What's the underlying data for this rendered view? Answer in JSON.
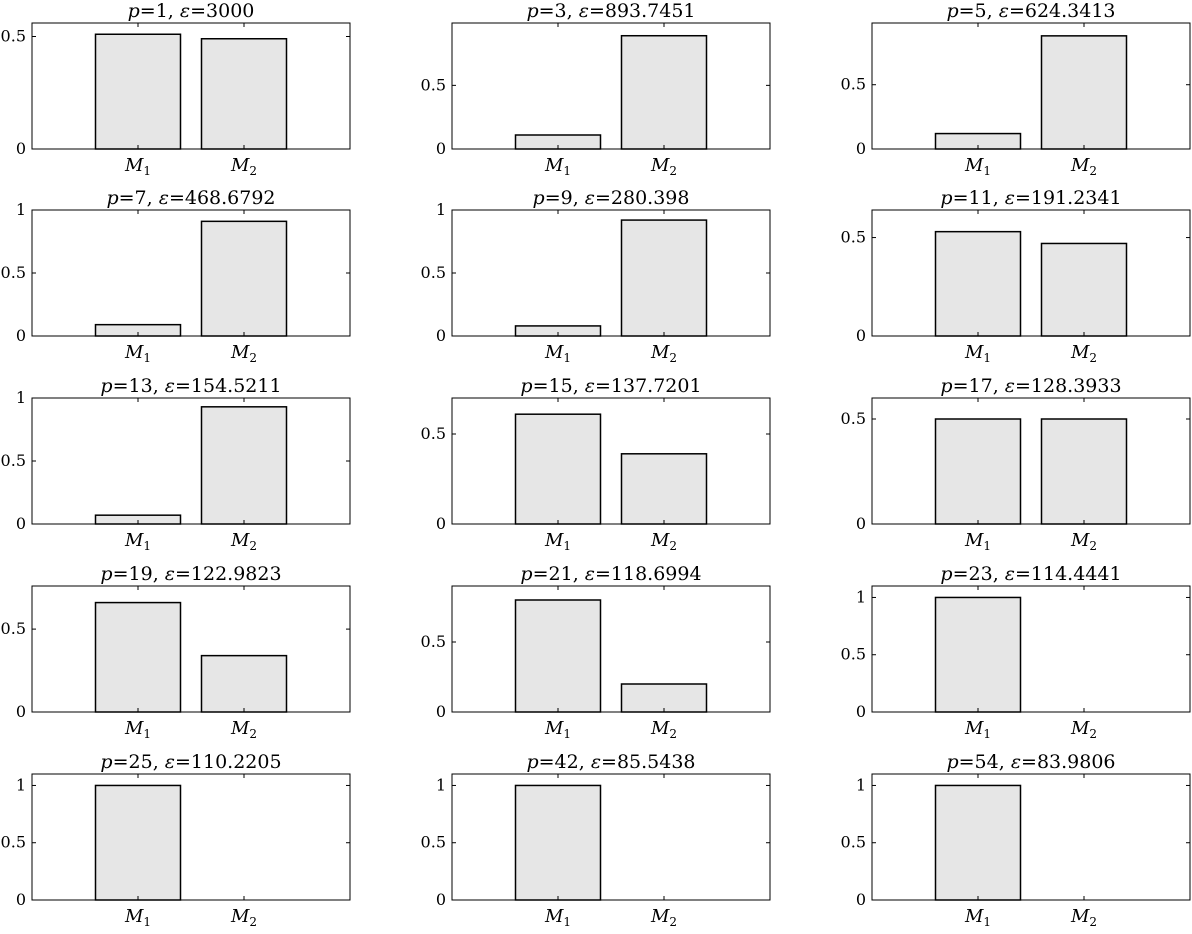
{
  "chart_data": [
    {
      "type": "bar",
      "title": "p=1, ε=3000",
      "title_parts": {
        "p": "1",
        "e": "3000"
      },
      "categories": [
        "M1",
        "M2"
      ],
      "values": [
        0.51,
        0.49
      ],
      "ylim": [
        0,
        0.56
      ],
      "yticks": [
        0,
        0.5
      ],
      "ytick_labels": [
        "0",
        "0.5"
      ],
      "grid": false
    },
    {
      "type": "bar",
      "title": "p=3, ε=893.7451",
      "title_parts": {
        "p": "3",
        "e": "893.7451"
      },
      "categories": [
        "M1",
        "M2"
      ],
      "values": [
        0.11,
        0.89
      ],
      "ylim": [
        0,
        0.99
      ],
      "yticks": [
        0,
        0.5
      ],
      "ytick_labels": [
        "0",
        "0.5"
      ],
      "grid": false
    },
    {
      "type": "bar",
      "title": "p=5, ε=624.3413",
      "title_parts": {
        "p": "5",
        "e": "624.3413"
      },
      "categories": [
        "M1",
        "M2"
      ],
      "values": [
        0.12,
        0.88
      ],
      "ylim": [
        0,
        0.98
      ],
      "yticks": [
        0,
        0.5
      ],
      "ytick_labels": [
        "0",
        "0.5"
      ],
      "grid": false
    },
    {
      "type": "bar",
      "title": "p=7, ε=468.6792",
      "title_parts": {
        "p": "7",
        "e": "468.6792"
      },
      "categories": [
        "M1",
        "M2"
      ],
      "values": [
        0.09,
        0.91
      ],
      "ylim": [
        0,
        1.0
      ],
      "yticks": [
        0,
        0.5,
        1
      ],
      "ytick_labels": [
        "0",
        "0.5",
        "1"
      ],
      "grid": false
    },
    {
      "type": "bar",
      "title": "p=9, ε=280.398",
      "title_parts": {
        "p": "9",
        "e": "280.398"
      },
      "categories": [
        "M1",
        "M2"
      ],
      "values": [
        0.08,
        0.92
      ],
      "ylim": [
        0,
        1.0
      ],
      "yticks": [
        0,
        0.5,
        1
      ],
      "ytick_labels": [
        "0",
        "0.5",
        "1"
      ],
      "grid": false
    },
    {
      "type": "bar",
      "title": "p=11, ε=191.2341",
      "title_parts": {
        "p": "11",
        "e": "191.2341"
      },
      "categories": [
        "M1",
        "M2"
      ],
      "values": [
        0.53,
        0.47
      ],
      "ylim": [
        0,
        0.64
      ],
      "yticks": [
        0,
        0.5
      ],
      "ytick_labels": [
        "0",
        "0.5"
      ],
      "grid": false
    },
    {
      "type": "bar",
      "title": "p=13, ε=154.5211",
      "title_parts": {
        "p": "13",
        "e": "154.5211"
      },
      "categories": [
        "M1",
        "M2"
      ],
      "values": [
        0.07,
        0.93
      ],
      "ylim": [
        0,
        1.0
      ],
      "yticks": [
        0,
        0.5,
        1
      ],
      "ytick_labels": [
        "0",
        "0.5",
        "1"
      ],
      "grid": false
    },
    {
      "type": "bar",
      "title": "p=15, ε=137.7201",
      "title_parts": {
        "p": "15",
        "e": "137.7201"
      },
      "categories": [
        "M1",
        "M2"
      ],
      "values": [
        0.61,
        0.39
      ],
      "ylim": [
        0,
        0.7
      ],
      "yticks": [
        0,
        0.5
      ],
      "ytick_labels": [
        "0",
        "0.5"
      ],
      "grid": false
    },
    {
      "type": "bar",
      "title": "p=17, ε=128.3933",
      "title_parts": {
        "p": "17",
        "e": "128.3933"
      },
      "categories": [
        "M1",
        "M2"
      ],
      "values": [
        0.5,
        0.5
      ],
      "ylim": [
        0,
        0.6
      ],
      "yticks": [
        0,
        0.5
      ],
      "ytick_labels": [
        "0",
        "0.5"
      ],
      "grid": false
    },
    {
      "type": "bar",
      "title": "p=19, ε=122.9823",
      "title_parts": {
        "p": "19",
        "e": "122.9823"
      },
      "categories": [
        "M1",
        "M2"
      ],
      "values": [
        0.66,
        0.34
      ],
      "ylim": [
        0,
        0.76
      ],
      "yticks": [
        0,
        0.5
      ],
      "ytick_labels": [
        "0",
        "0.5"
      ],
      "grid": false
    },
    {
      "type": "bar",
      "title": "p=21, ε=118.6994",
      "title_parts": {
        "p": "21",
        "e": "118.6994"
      },
      "categories": [
        "M1",
        "M2"
      ],
      "values": [
        0.8,
        0.2
      ],
      "ylim": [
        0,
        0.9
      ],
      "yticks": [
        0,
        0.5
      ],
      "ytick_labels": [
        "0",
        "0.5"
      ],
      "grid": false
    },
    {
      "type": "bar",
      "title": "p=23, ε=114.4441",
      "title_parts": {
        "p": "23",
        "e": "114.4441"
      },
      "categories": [
        "M1",
        "M2"
      ],
      "values": [
        1.0,
        0.0
      ],
      "ylim": [
        0,
        1.1
      ],
      "yticks": [
        0,
        0.5,
        1
      ],
      "ytick_labels": [
        "0",
        "0.5",
        "1"
      ],
      "grid": false
    },
    {
      "type": "bar",
      "title": "p=25, ε=110.2205",
      "title_parts": {
        "p": "25",
        "e": "110.2205"
      },
      "categories": [
        "M1",
        "M2"
      ],
      "values": [
        1.0,
        0.0
      ],
      "ylim": [
        0,
        1.1
      ],
      "yticks": [
        0,
        0.5,
        1
      ],
      "ytick_labels": [
        "0",
        "0.5",
        "1"
      ],
      "grid": false
    },
    {
      "type": "bar",
      "title": "p=42, ε=85.5438",
      "title_parts": {
        "p": "42",
        "e": "85.5438"
      },
      "categories": [
        "M1",
        "M2"
      ],
      "values": [
        1.0,
        0.0
      ],
      "ylim": [
        0,
        1.1
      ],
      "yticks": [
        0,
        0.5,
        1
      ],
      "ytick_labels": [
        "0",
        "0.5",
        "1"
      ],
      "grid": false
    },
    {
      "type": "bar",
      "title": "p=54, ε=83.9806",
      "title_parts": {
        "p": "54",
        "e": "83.9806"
      },
      "categories": [
        "M1",
        "M2"
      ],
      "values": [
        1.0,
        0.0
      ],
      "ylim": [
        0,
        1.1
      ],
      "yticks": [
        0,
        0.5,
        1
      ],
      "ytick_labels": [
        "0",
        "0.5",
        "1"
      ],
      "grid": false
    }
  ],
  "style": {
    "bar_fill": "#e6e6e6",
    "bar_stroke": "#000000",
    "axes_stroke": "#000000"
  }
}
